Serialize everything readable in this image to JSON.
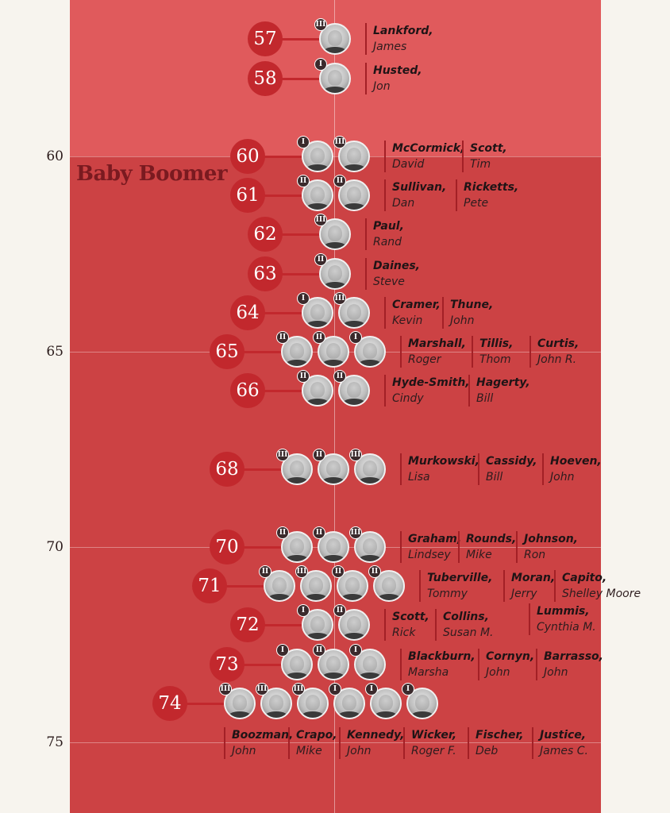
{
  "chart_data": {
    "type": "scatter",
    "title": "",
    "generation_label": "Baby Boomer",
    "y_ticks": [
      60,
      65,
      70,
      75
    ],
    "ylim": [
      55,
      76.3
    ],
    "term_label_meaning": "term number shown as roman numeral badge",
    "colors": {
      "badge": "#c2282d",
      "panel": "#cc4244",
      "panel_light": "#e05a5c",
      "label": "#7a1a20"
    },
    "groups": [
      {
        "age": 57,
        "senators": [
          {
            "last": "Lankford,",
            "first": "James",
            "term": "III"
          }
        ]
      },
      {
        "age": 58,
        "senators": [
          {
            "last": "Husted,",
            "first": "Jon",
            "term": "I"
          }
        ]
      },
      {
        "age": 60,
        "senators": [
          {
            "last": "McCormick,",
            "first": "David",
            "term": "I"
          },
          {
            "last": "Scott,",
            "first": "Tim",
            "term": "III"
          }
        ]
      },
      {
        "age": 61,
        "senators": [
          {
            "last": "Sullivan,",
            "first": "Dan",
            "term": "II"
          },
          {
            "last": "Ricketts,",
            "first": "Pete",
            "term": "II"
          }
        ]
      },
      {
        "age": 62,
        "senators": [
          {
            "last": "Paul,",
            "first": "Rand",
            "term": "III"
          }
        ]
      },
      {
        "age": 63,
        "senators": [
          {
            "last": "Daines,",
            "first": "Steve",
            "term": "II"
          }
        ]
      },
      {
        "age": 64,
        "senators": [
          {
            "last": "Cramer,",
            "first": "Kevin",
            "term": "I"
          },
          {
            "last": "Thune,",
            "first": "John",
            "term": "III"
          }
        ]
      },
      {
        "age": 65,
        "senators": [
          {
            "last": "Marshall,",
            "first": "Roger",
            "term": "II"
          },
          {
            "last": "Tillis,",
            "first": "Thom",
            "term": "II"
          },
          {
            "last": "Curtis,",
            "first": "John R.",
            "term": "I"
          }
        ]
      },
      {
        "age": 66,
        "senators": [
          {
            "last": "Hyde-Smith,",
            "first": "Cindy",
            "term": "II"
          },
          {
            "last": "Hagerty,",
            "first": "Bill",
            "term": "II"
          }
        ]
      },
      {
        "age": 68,
        "senators": [
          {
            "last": "Murkowski,",
            "first": "Lisa",
            "term": "III"
          },
          {
            "last": "Cassidy,",
            "first": "Bill",
            "term": "II"
          },
          {
            "last": "Hoeven,",
            "first": "John",
            "term": "III"
          }
        ]
      },
      {
        "age": 70,
        "senators": [
          {
            "last": "Graham,",
            "first": "Lindsey",
            "term": "II"
          },
          {
            "last": "Rounds,",
            "first": "Mike",
            "term": "II"
          },
          {
            "last": "Johnson,",
            "first": "Ron",
            "term": "III"
          }
        ]
      },
      {
        "age": 71,
        "senators": [
          {
            "last": "Tuberville,",
            "first": "Tommy",
            "term": "II"
          },
          {
            "last": "Moran,",
            "first": "Jerry",
            "term": "III"
          },
          {
            "last": "Capito,",
            "first": "Shelley Moore",
            "term": "II"
          },
          {
            "last": "Lummis,",
            "first": "Cynthia M.",
            "term": "II"
          }
        ]
      },
      {
        "age": 72,
        "senators": [
          {
            "last": "Scott,",
            "first": "Rick",
            "term": "I"
          },
          {
            "last": "Collins,",
            "first": "Susan M.",
            "term": "II"
          }
        ]
      },
      {
        "age": 73,
        "senators": [
          {
            "last": "Blackburn,",
            "first": "Marsha",
            "term": "I"
          },
          {
            "last": "Cornyn,",
            "first": "John",
            "term": "II"
          },
          {
            "last": "Barrasso,",
            "first": "John",
            "term": "I"
          }
        ]
      },
      {
        "age": 74,
        "senators": [
          {
            "last": "Boozman,",
            "first": "John",
            "term": "III"
          },
          {
            "last": "Crapo,",
            "first": "Mike",
            "term": "III"
          },
          {
            "last": "Kennedy,",
            "first": "John",
            "term": "III"
          },
          {
            "last": "Wicker,",
            "first": "Roger F.",
            "term": "I"
          },
          {
            "last": "Fischer,",
            "first": "Deb",
            "term": "I"
          },
          {
            "last": "Justice,",
            "first": "James C.",
            "term": "I"
          }
        ]
      }
    ]
  }
}
